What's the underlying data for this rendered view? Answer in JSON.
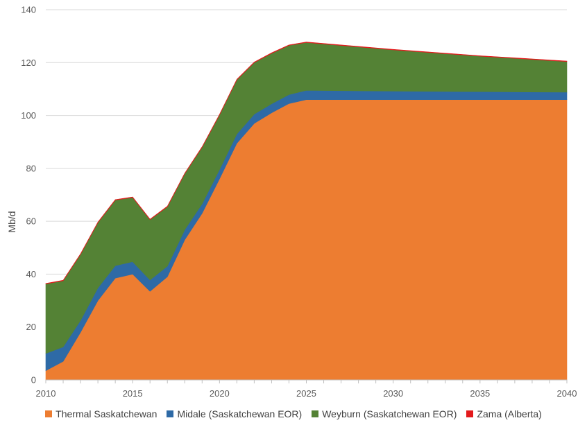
{
  "chart_data": {
    "type": "area",
    "stacked": true,
    "ylabel": "Mb/d",
    "xlabel": "",
    "xlim": [
      2010,
      2040
    ],
    "ylim": [
      0,
      140
    ],
    "x_ticks": [
      2010,
      2015,
      2020,
      2025,
      2030,
      2035,
      2040
    ],
    "y_ticks": [
      0,
      20,
      40,
      60,
      80,
      100,
      120,
      140
    ],
    "grid": "horizontal",
    "legend_position": "bottom",
    "x": [
      2010,
      2011,
      2012,
      2013,
      2014,
      2015,
      2016,
      2017,
      2018,
      2019,
      2020,
      2021,
      2022,
      2023,
      2024,
      2025,
      2030,
      2035,
      2040
    ],
    "series": [
      {
        "name": "Thermal Saskatchewan",
        "color": "#ed7d31",
        "values": [
          3.5,
          7,
          18,
          30,
          38.5,
          40,
          33.5,
          39,
          53,
          63,
          76,
          89.5,
          97,
          101,
          104.5,
          106,
          106,
          106,
          106
        ]
      },
      {
        "name": "Midale (Saskatchewan EOR)",
        "color": "#2e6aa6",
        "values": [
          6.5,
          5.5,
          4.5,
          4.8,
          4.7,
          4.7,
          4.3,
          4,
          3.8,
          3.6,
          3.5,
          3.5,
          3.5,
          3.4,
          3.4,
          3.5,
          3.2,
          3,
          2.8
        ]
      },
      {
        "name": "Weyburn (Saskatchewan EOR)",
        "color": "#548235",
        "values": [
          26.3,
          25,
          25,
          24.7,
          24.8,
          24.3,
          22.8,
          22.5,
          21.2,
          21.4,
          20.7,
          20.5,
          19.5,
          19.1,
          18.6,
          18.1,
          15.6,
          13.4,
          11.6
        ]
      },
      {
        "name": "Zama (Alberta)",
        "color": "#e31a1c",
        "values": [
          0.2,
          0.2,
          0.2,
          0.2,
          0.2,
          0.2,
          0.2,
          0.2,
          0.2,
          0.2,
          0.2,
          0.2,
          0.2,
          0.2,
          0.2,
          0.2,
          0.2,
          0.2,
          0.2
        ]
      }
    ]
  }
}
